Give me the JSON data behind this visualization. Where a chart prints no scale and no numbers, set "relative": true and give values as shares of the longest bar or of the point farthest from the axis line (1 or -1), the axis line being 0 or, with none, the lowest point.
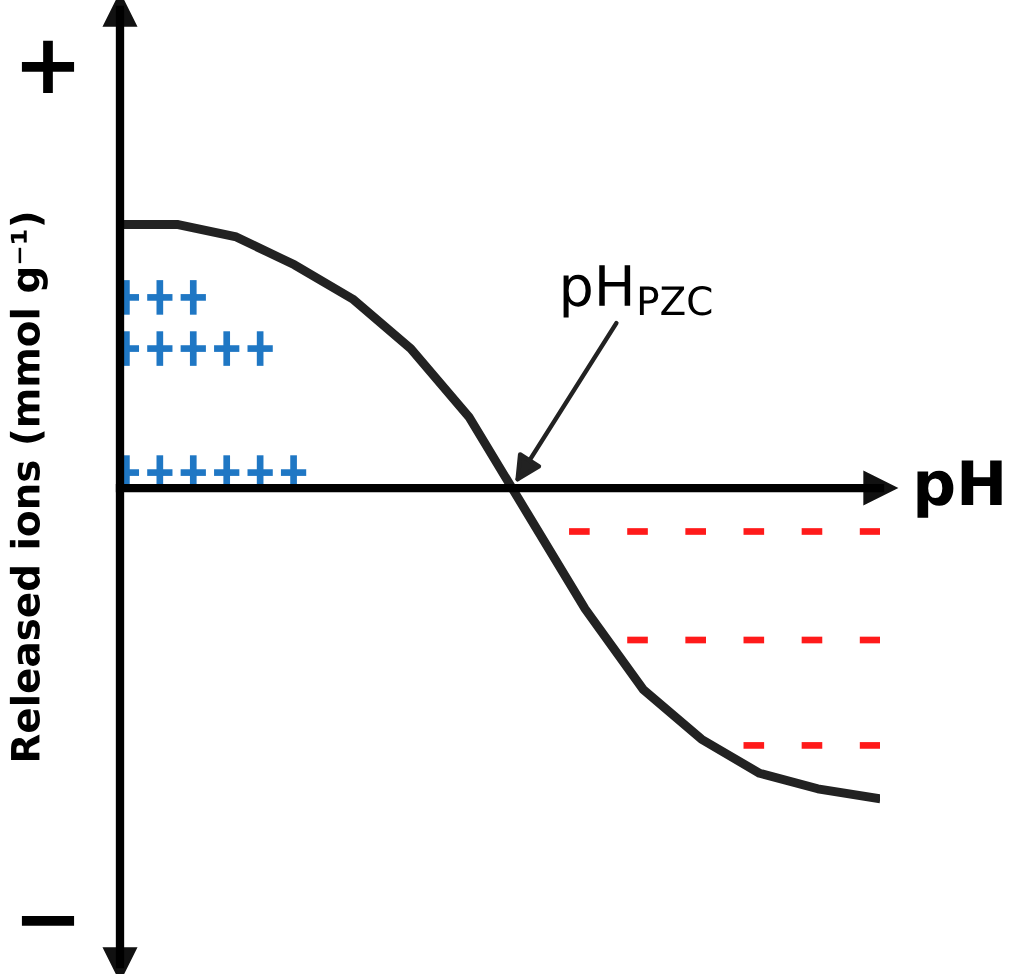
{
  "chart_data": {
    "type": "line",
    "relative": true,
    "xlabel": "pH",
    "ylabel": "Released ions (mmol g⁻¹)",
    "categories": [
      null,
      null,
      null,
      null,
      null,
      null,
      null,
      null,
      null,
      null,
      null,
      null,
      null,
      null
    ],
    "series": [
      {
        "color": "#222222",
        "values": [
          0.85,
          0.85,
          0.81,
          0.72,
          0.61,
          0.45,
          0.23,
          -0.08,
          -0.39,
          -0.65,
          -0.81,
          -0.92,
          -0.97,
          -1.0
        ]
      }
    ],
    "annotations": [
      "+",
      "−",
      "pH$_{PZC}$"
    ],
    "tick_labels": false,
    "grid": false,
    "marker": "none",
    "line_style": "solid"
  }
}
